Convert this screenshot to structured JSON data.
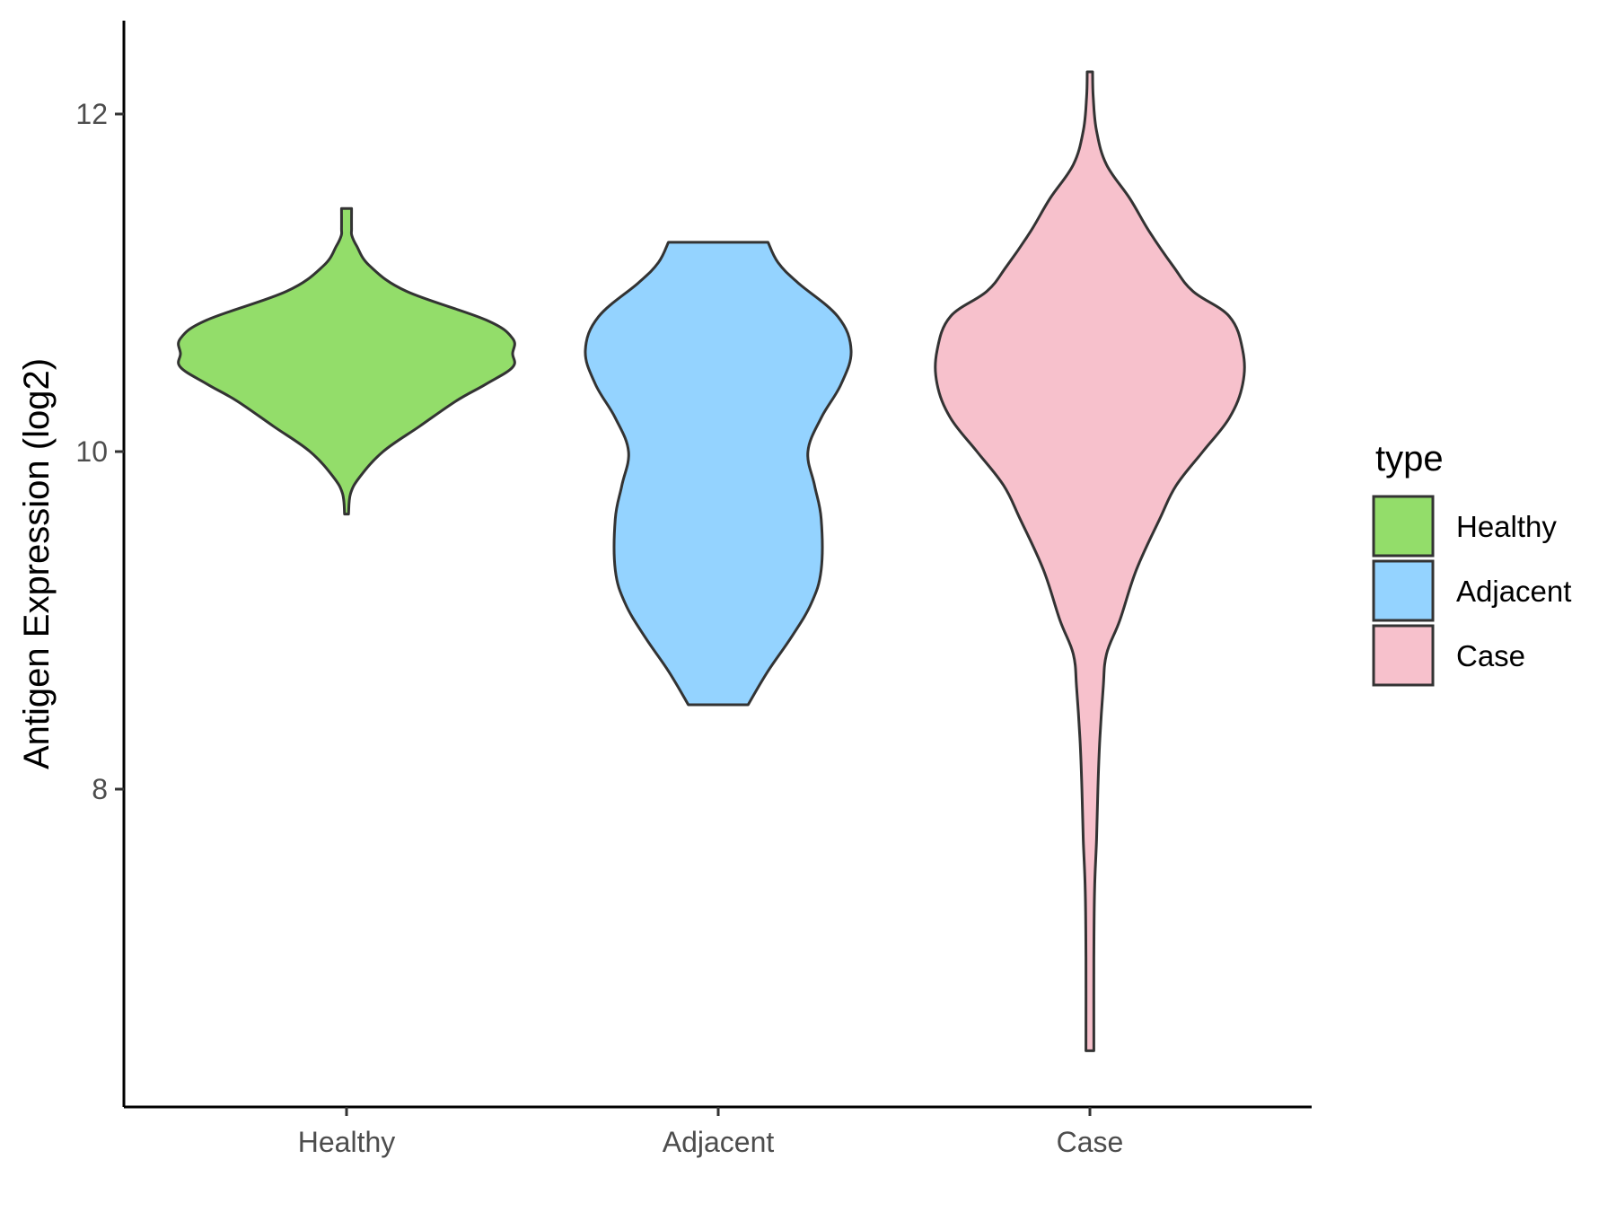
{
  "chart_data": {
    "type": "violin",
    "ylabel": "Antigen Expression (log2)",
    "xlabel": "",
    "categories": [
      "Healthy",
      "Adjacent",
      "Case"
    ],
    "y_ticks": [
      "8",
      "10",
      "12"
    ],
    "y_tick_values": [
      8,
      10,
      12
    ],
    "ylim": [
      6.2,
      12.6
    ],
    "grid": false,
    "legend": {
      "title": "type",
      "position": "right",
      "entries": [
        "Healthy",
        "Adjacent",
        "Case"
      ]
    },
    "colors": {
      "Healthy": "#93DD6A",
      "Adjacent": "#94D3FF",
      "Case": "#F7C1CC",
      "outline": "#333333"
    },
    "series": [
      {
        "name": "Healthy",
        "min": 9.63,
        "max": 11.44,
        "profile": [
          [
            9.63,
            0.006
          ],
          [
            9.75,
            0.012
          ],
          [
            9.85,
            0.04
          ],
          [
            10.0,
            0.11
          ],
          [
            10.15,
            0.22
          ],
          [
            10.3,
            0.33
          ],
          [
            10.4,
            0.42
          ],
          [
            10.5,
            0.5
          ],
          [
            10.58,
            0.5
          ],
          [
            10.67,
            0.5
          ],
          [
            10.78,
            0.42
          ],
          [
            10.95,
            0.18
          ],
          [
            11.1,
            0.07
          ],
          [
            11.22,
            0.03
          ],
          [
            11.28,
            0.016
          ],
          [
            11.32,
            0.015
          ],
          [
            11.44,
            0.015
          ]
        ]
      },
      {
        "name": "Adjacent",
        "min": 8.5,
        "max": 11.24,
        "profile": [
          [
            8.5,
            0.09
          ],
          [
            8.7,
            0.15
          ],
          [
            8.9,
            0.22
          ],
          [
            9.1,
            0.28
          ],
          [
            9.3,
            0.31
          ],
          [
            9.6,
            0.31
          ],
          [
            9.8,
            0.29
          ],
          [
            10.0,
            0.27
          ],
          [
            10.2,
            0.31
          ],
          [
            10.4,
            0.37
          ],
          [
            10.6,
            0.4
          ],
          [
            10.8,
            0.36
          ],
          [
            11.0,
            0.24
          ],
          [
            11.12,
            0.18
          ],
          [
            11.24,
            0.15
          ]
        ]
      },
      {
        "name": "Case",
        "min": 6.45,
        "max": 12.25,
        "profile": [
          [
            6.45,
            0.012
          ],
          [
            7.0,
            0.012
          ],
          [
            7.4,
            0.014
          ],
          [
            7.7,
            0.02
          ],
          [
            8.0,
            0.024
          ],
          [
            8.3,
            0.03
          ],
          [
            8.6,
            0.04
          ],
          [
            8.8,
            0.05
          ],
          [
            9.0,
            0.09
          ],
          [
            9.3,
            0.14
          ],
          [
            9.6,
            0.21
          ],
          [
            9.8,
            0.26
          ],
          [
            10.0,
            0.34
          ],
          [
            10.2,
            0.42
          ],
          [
            10.4,
            0.46
          ],
          [
            10.6,
            0.46
          ],
          [
            10.8,
            0.42
          ],
          [
            10.95,
            0.31
          ],
          [
            11.1,
            0.25
          ],
          [
            11.3,
            0.18
          ],
          [
            11.5,
            0.12
          ],
          [
            11.7,
            0.05
          ],
          [
            11.9,
            0.02
          ],
          [
            12.1,
            0.01
          ],
          [
            12.25,
            0.008
          ]
        ]
      }
    ]
  }
}
